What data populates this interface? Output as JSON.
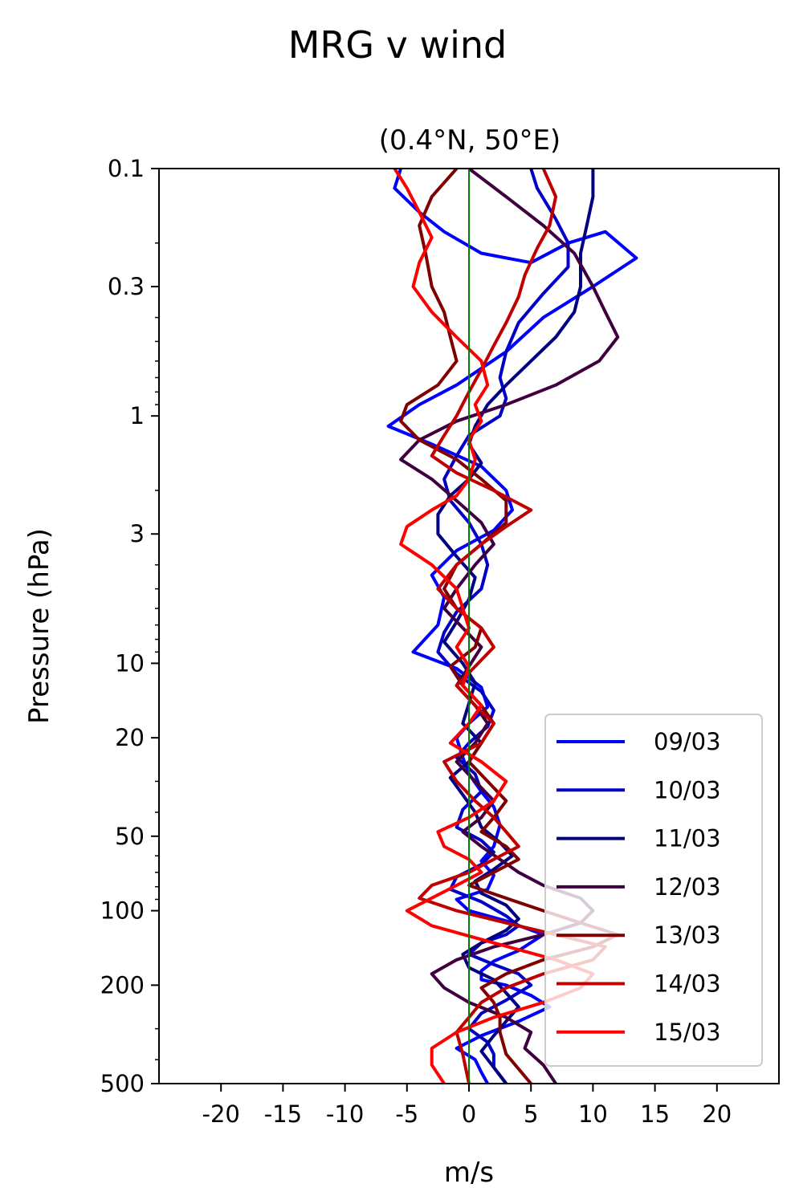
{
  "chart_data": {
    "type": "line",
    "title": "MRG v wind",
    "subtitle": "(0.4°N, 50°E)",
    "xlabel": "m/s",
    "ylabel": "Pressure (hPa)",
    "xlim": [
      -25,
      25
    ],
    "ylim": [
      500,
      0.1
    ],
    "yscale": "log",
    "yaxis_inverted": true,
    "x_ticks": [
      -20,
      -15,
      -10,
      -5,
      0,
      5,
      10,
      15,
      20
    ],
    "x_tick_labels": [
      "-20",
      "-15",
      "-10",
      "-5",
      "0",
      "5",
      "10",
      "15",
      "20"
    ],
    "y_ticks": [
      0.1,
      0.3,
      1,
      3,
      10,
      20,
      50,
      100,
      200,
      500
    ],
    "y_tick_labels": [
      "0.1",
      "0.3",
      "1",
      "3",
      "10",
      "20",
      "50",
      "100",
      "200",
      "500"
    ],
    "reference_line": {
      "x": 0,
      "color": "#008000"
    },
    "grid": false,
    "legend_position": "lower-right",
    "series": [
      {
        "name": "09/03",
        "color": "#0000ff",
        "x": [
          -5.5,
          -6,
          -4,
          -2,
          1,
          5,
          8,
          11,
          13.5,
          10,
          6,
          3,
          -1,
          -4,
          -6.5,
          -3,
          1,
          3,
          3.5,
          2,
          -1,
          -3,
          -2,
          -2.5,
          -4.5,
          -1,
          1,
          1.5,
          0,
          -1,
          -0.5,
          0,
          1,
          2,
          2.5,
          2,
          1,
          2,
          1.5,
          -1,
          0,
          3,
          6,
          4,
          2,
          1,
          1,
          3,
          5,
          6.5,
          4,
          1,
          -1,
          0.5,
          1,
          1.5
        ],
        "p": [
          0.1,
          0.12,
          0.15,
          0.18,
          0.22,
          0.24,
          0.2,
          0.18,
          0.23,
          0.3,
          0.4,
          0.55,
          0.75,
          0.9,
          1.1,
          1.3,
          1.6,
          2.0,
          2.4,
          2.9,
          3.5,
          4.4,
          5.4,
          7.0,
          9.0,
          10.5,
          12.5,
          15,
          17.5,
          20,
          24,
          28,
          33,
          38,
          45,
          55,
          63,
          72,
          82,
          90,
          100,
          110,
          125,
          145,
          160,
          175,
          190,
          200,
          220,
          245,
          280,
          320,
          360,
          400,
          450,
          500
        ]
      },
      {
        "name": "10/03",
        "color": "#0000c8",
        "x": [
          5,
          5.5,
          7,
          8,
          8,
          6,
          4,
          3,
          2.5,
          3,
          2.5,
          0,
          -1,
          -2,
          -1.5,
          0,
          1,
          1.5,
          1,
          -1,
          -2,
          -2.5,
          -1,
          1,
          2,
          1.5,
          0,
          -1,
          0.5,
          1,
          -0.5,
          -1,
          1,
          2,
          1,
          -1,
          -1.5,
          1,
          3,
          4,
          3,
          1,
          0,
          2,
          4,
          5,
          3,
          1,
          0,
          1.5,
          2,
          2,
          3
        ],
        "p": [
          0.1,
          0.12,
          0.16,
          0.2,
          0.25,
          0.32,
          0.42,
          0.55,
          0.7,
          0.85,
          1.0,
          1.2,
          1.45,
          1.8,
          2.2,
          2.7,
          3.3,
          4.0,
          5.0,
          6.2,
          7.5,
          9.0,
          11,
          13,
          15.5,
          18,
          21,
          24,
          28,
          33,
          39,
          46,
          52,
          58,
          65,
          73,
          82,
          92,
          105,
          115,
          125,
          135,
          150,
          165,
          180,
          200,
          230,
          260,
          300,
          340,
          380,
          430,
          500
        ]
      },
      {
        "name": "11/03",
        "color": "#000080",
        "x": [
          10,
          10,
          9.5,
          9,
          9,
          8.5,
          7,
          5,
          3,
          1.5,
          0.5,
          0,
          1,
          0,
          -1.5,
          -2.5,
          -2.5,
          -1,
          0.5,
          0,
          -1,
          -2,
          -0.5,
          0.5,
          0,
          -0.5,
          1,
          0,
          -1.5,
          -0.5,
          0.5,
          1,
          2.5,
          3.5,
          2,
          0.5,
          1,
          3,
          4,
          3,
          1,
          -0.5,
          0,
          2,
          3,
          4,
          3,
          2,
          1,
          2,
          3
        ],
        "p": [
          0.1,
          0.13,
          0.17,
          0.22,
          0.3,
          0.38,
          0.48,
          0.6,
          0.75,
          0.9,
          1.1,
          1.3,
          1.55,
          1.8,
          2.1,
          2.5,
          3.0,
          3.7,
          4.5,
          5.5,
          6.8,
          8.2,
          10,
          12,
          14.5,
          17.5,
          21,
          25,
          29,
          34,
          40,
          46,
          53,
          60,
          68,
          76,
          85,
          95,
          108,
          120,
          135,
          150,
          170,
          190,
          215,
          245,
          280,
          320,
          370,
          430,
          500
        ]
      },
      {
        "name": "12/03",
        "color": "#400040",
        "x": [
          0,
          3,
          6,
          8.5,
          10,
          11,
          12,
          10.5,
          7,
          3,
          -1,
          -4,
          -5.5,
          -3,
          -1,
          1,
          2,
          0.5,
          -1,
          -2,
          -0.5,
          1,
          0,
          -1,
          0.5,
          1.5,
          0.5,
          -1,
          0.5,
          2,
          1,
          -0.5,
          1,
          2.5,
          4,
          6,
          9,
          10,
          9,
          6,
          2,
          -1,
          -3,
          -2,
          0,
          3,
          5,
          4.5,
          6,
          7
        ],
        "p": [
          0.1,
          0.13,
          0.17,
          0.22,
          0.3,
          0.38,
          0.48,
          0.6,
          0.75,
          0.9,
          1.05,
          1.25,
          1.5,
          1.8,
          2.2,
          2.7,
          3.3,
          4.0,
          5.0,
          6.0,
          7.2,
          8.6,
          10.3,
          12.3,
          14.8,
          17.5,
          21,
          25,
          30,
          36,
          42,
          48,
          55,
          62,
          70,
          79,
          89,
          100,
          112,
          125,
          140,
          158,
          180,
          205,
          235,
          270,
          310,
          360,
          420,
          500
        ]
      },
      {
        "name": "13/03",
        "color": "#800000",
        "x": [
          -1,
          -3,
          -4,
          -3.5,
          -3,
          -2,
          -1.5,
          -1,
          -2.5,
          -5,
          -5.5,
          -4,
          -1,
          1,
          3,
          3,
          1,
          -1,
          -2,
          -1,
          1,
          0.5,
          -1.5,
          -0.5,
          1,
          2,
          1,
          0,
          1.5,
          3,
          2,
          1,
          3,
          4,
          2,
          0,
          3,
          6,
          9,
          12,
          10,
          6,
          3,
          1,
          2,
          2.5,
          2.5,
          3,
          5
        ],
        "p": [
          0.1,
          0.13,
          0.17,
          0.22,
          0.3,
          0.38,
          0.48,
          0.6,
          0.75,
          0.9,
          1.05,
          1.25,
          1.5,
          1.8,
          2.2,
          2.7,
          3.3,
          4.0,
          5.0,
          6.0,
          7.2,
          8.6,
          10.3,
          12.3,
          14.8,
          17.5,
          21,
          25,
          30,
          36,
          42,
          48,
          55,
          62,
          70,
          79,
          89,
          100,
          112,
          125,
          140,
          158,
          180,
          205,
          235,
          270,
          310,
          380,
          500
        ]
      },
      {
        "name": "14/03",
        "color": "#c00000",
        "x": [
          6,
          7,
          6.5,
          5.5,
          4.5,
          4,
          3,
          2,
          1,
          0,
          -1,
          -2,
          -3,
          -1,
          2,
          5,
          3,
          1,
          -1,
          -2.5,
          -1,
          1,
          2,
          0.5,
          -1,
          0.5,
          2,
          1,
          -2,
          -1,
          0.5,
          2,
          3,
          4,
          2,
          0,
          -3,
          -4,
          -1,
          3,
          7,
          11,
          10,
          6,
          3,
          1,
          0,
          -1,
          -0.5,
          0
        ],
        "p": [
          0.1,
          0.13,
          0.17,
          0.21,
          0.27,
          0.33,
          0.42,
          0.52,
          0.65,
          0.8,
          1.0,
          1.2,
          1.45,
          1.7,
          2.0,
          2.4,
          2.8,
          3.3,
          4.0,
          5.0,
          6.0,
          7.2,
          8.6,
          10.3,
          12.3,
          14.8,
          17.5,
          21,
          25,
          30,
          36,
          42,
          48,
          55,
          62,
          70,
          79,
          89,
          100,
          112,
          125,
          140,
          158,
          180,
          205,
          235,
          270,
          310,
          380,
          500
        ]
      },
      {
        "name": "15/03",
        "color": "#ff0000",
        "x": [
          -6,
          -5,
          -4,
          -3,
          -4,
          -4.5,
          -3,
          -1,
          1,
          1.5,
          0.5,
          1,
          0,
          0.5,
          0,
          -1,
          -3,
          -5,
          -5.5,
          -3,
          -1,
          -0.5,
          0,
          -1,
          0,
          -0.5,
          1,
          0,
          -1.5,
          1,
          3,
          2,
          0,
          -2.5,
          -2,
          0,
          1,
          -1,
          -5,
          -3,
          2,
          7,
          10,
          9,
          6,
          2,
          -1,
          -3,
          -3,
          -2
        ],
        "p": [
          0.1,
          0.12,
          0.15,
          0.19,
          0.24,
          0.3,
          0.38,
          0.48,
          0.6,
          0.75,
          0.9,
          1.05,
          1.25,
          1.5,
          1.8,
          2.1,
          2.4,
          2.8,
          3.3,
          4.0,
          5.0,
          6.0,
          7.2,
          8.6,
          10.3,
          12.3,
          14.8,
          17.5,
          21,
          25,
          30,
          36,
          42,
          48,
          55,
          62,
          70,
          79,
          100,
          115,
          135,
          158,
          180,
          205,
          235,
          270,
          310,
          360,
          420,
          500
        ]
      }
    ]
  }
}
